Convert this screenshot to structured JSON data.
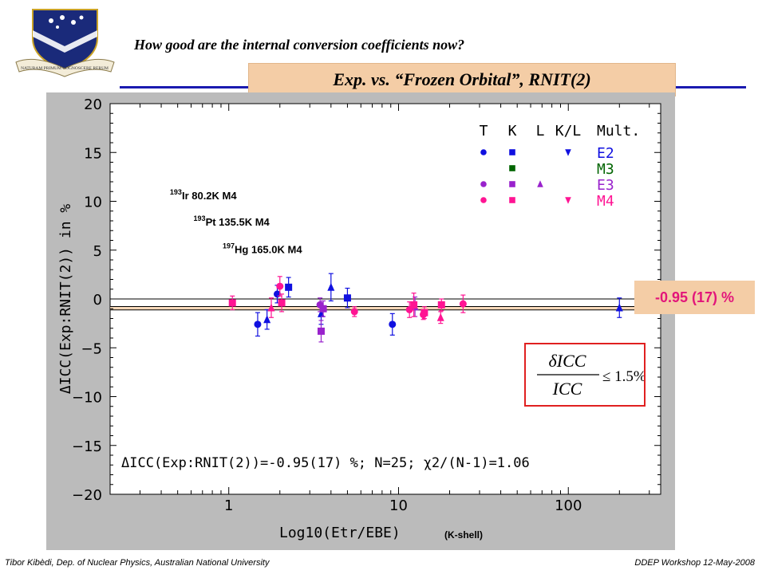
{
  "header": {
    "title": "How good are the internal conversion coefficients now?",
    "subtitle": "Exp. vs. “Frozen Orbital”, RNIT(2)"
  },
  "footer": {
    "left": "Tibor Kibèdi, Dep. of Nuclear Physics, Australian National University",
    "right": "DDEP Workshop 12-May-2008"
  },
  "crest": {
    "motto": "NATURAM PRIMUM COGNOSCERE RERUM"
  },
  "result_label": "-0.95 (17) %",
  "formula": {
    "numerator": "δICC",
    "denominator": "ICC",
    "relation": "≤ 1.5%"
  },
  "colors": {
    "accent_blue": "#1a1ab0",
    "E2": "#1010e0",
    "M3": "#006400",
    "E3": "#9922cc",
    "M4": "#ff1493",
    "result": "#e2157a",
    "box_fill": "#f4cda6"
  },
  "chart_data": {
    "type": "scatter",
    "xscale": "log",
    "xlim": [
      0.2,
      350
    ],
    "ylim": [
      -20,
      20
    ],
    "xticks": [
      1,
      10,
      100
    ],
    "yticks": [
      -20,
      -15,
      -10,
      -5,
      0,
      5,
      10,
      15,
      20
    ],
    "xlabel": "Log10(Etr/EBE)",
    "xlabel_extra": "(K-shell)",
    "ylabel": "ΔICC(Exp:RNIT(2)) in %",
    "mean": -0.95,
    "mean_band": [
      -1.12,
      -0.78
    ],
    "summary_text": "ΔICC(Exp:RNIT(2))=-0.95(17) %; N=25; χ2/(N-1)=1.06",
    "legend": {
      "columns": [
        "T",
        "K",
        "L",
        "K/L",
        "Mult."
      ],
      "rows": [
        {
          "mult": "E2",
          "color": "#1010e0",
          "markers": [
            "circle",
            "square",
            "",
            "triangle-down"
          ]
        },
        {
          "mult": "M3",
          "color": "#006400",
          "markers": [
            "",
            "square",
            "",
            ""
          ]
        },
        {
          "mult": "E3",
          "color": "#9922cc",
          "markers": [
            "circle",
            "square",
            "triangle-up",
            ""
          ]
        },
        {
          "mult": "M4",
          "color": "#ff1493",
          "markers": [
            "circle",
            "square",
            "",
            "triangle-down"
          ]
        }
      ]
    },
    "annotations": [
      {
        "mass": "193",
        "text": "Ir 80.2K M4",
        "x": 0.45,
        "y": 10.2
      },
      {
        "mass": "193",
        "text": "Pt 135.5K M4",
        "x": 0.62,
        "y": 7.5
      },
      {
        "mass": "197",
        "text": "Hg 165.0K M4",
        "x": 0.92,
        "y": 4.7
      }
    ],
    "series": [
      {
        "name": "E2",
        "color": "#1010e0",
        "points": [
          {
            "x": 1.48,
            "y": -2.6,
            "err": 1.2,
            "marker": "circle"
          },
          {
            "x": 1.68,
            "y": -2.1,
            "err": 1.0,
            "marker": "triangle-up"
          },
          {
            "x": 1.93,
            "y": 0.5,
            "err": 0.9,
            "marker": "circle"
          },
          {
            "x": 2.25,
            "y": 1.2,
            "err": 1.0,
            "marker": "square"
          },
          {
            "x": 3.5,
            "y": -1.5,
            "err": 1.1,
            "marker": "triangle-up"
          },
          {
            "x": 4.0,
            "y": 1.2,
            "err": 1.4,
            "marker": "triangle-up"
          },
          {
            "x": 5.0,
            "y": 0.1,
            "err": 1.0,
            "marker": "square"
          },
          {
            "x": 9.2,
            "y": -2.6,
            "err": 1.1,
            "marker": "circle"
          },
          {
            "x": 200,
            "y": -0.9,
            "err": 1.0,
            "marker": "triangle-up"
          }
        ]
      },
      {
        "name": "E3",
        "color": "#9922cc",
        "points": [
          {
            "x": 3.45,
            "y": -0.6,
            "err": 0.7,
            "marker": "circle"
          },
          {
            "x": 3.5,
            "y": -3.3,
            "err": 1.1,
            "marker": "square"
          },
          {
            "x": 3.6,
            "y": -1.0,
            "err": 0.8,
            "marker": "square"
          },
          {
            "x": 12.5,
            "y": -0.8,
            "err": 1.0,
            "marker": "triangle-up"
          }
        ]
      },
      {
        "name": "M4",
        "color": "#ff1493",
        "points": [
          {
            "x": 1.05,
            "y": -0.4,
            "err": 0.7,
            "marker": "square"
          },
          {
            "x": 1.78,
            "y": -0.9,
            "err": 1.0,
            "marker": "triangle-up"
          },
          {
            "x": 2.0,
            "y": 1.3,
            "err": 1.0,
            "marker": "circle"
          },
          {
            "x": 2.05,
            "y": -0.4,
            "err": 0.9,
            "marker": "square"
          },
          {
            "x": 5.5,
            "y": -1.3,
            "err": 0.5,
            "marker": "circle"
          },
          {
            "x": 11.6,
            "y": -1.1,
            "err": 0.8,
            "marker": "circle"
          },
          {
            "x": 12.3,
            "y": -0.6,
            "err": 1.2,
            "marker": "square"
          },
          {
            "x": 14.0,
            "y": -1.6,
            "err": 0.5,
            "marker": "circle"
          },
          {
            "x": 14.2,
            "y": -1.4,
            "err": 0.6,
            "marker": "square"
          },
          {
            "x": 17.7,
            "y": -1.9,
            "err": 0.6,
            "marker": "triangle-up"
          },
          {
            "x": 17.9,
            "y": -0.6,
            "err": 0.6,
            "marker": "square"
          },
          {
            "x": 24.0,
            "y": -0.5,
            "err": 0.9,
            "marker": "circle"
          }
        ]
      }
    ]
  }
}
